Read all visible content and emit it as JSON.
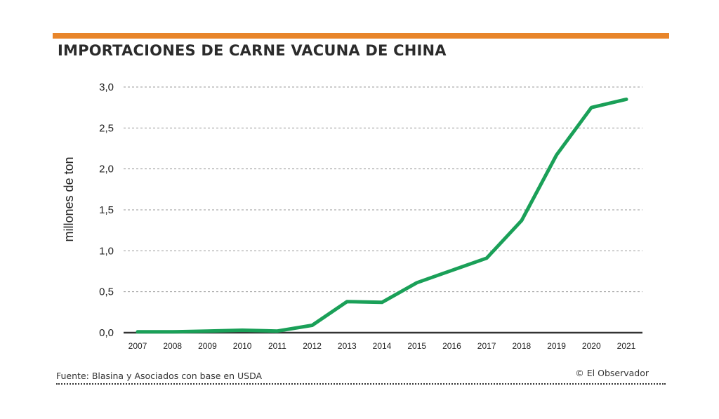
{
  "colors": {
    "accent_bar": "#E8852A",
    "line": "#1AA058",
    "grid": "#9a9a9a",
    "axis": "#333333",
    "text": "#222222"
  },
  "header": {
    "title": "IMPORTACIONES DE CARNE VACUNA DE CHINA"
  },
  "footer": {
    "source": "Fuente: Blasina y Asociados con base en USDA",
    "credit": "© El Observador"
  },
  "chart_data": {
    "type": "line",
    "title": "IMPORTACIONES DE CARNE VACUNA DE CHINA",
    "xlabel": "",
    "ylabel": "millones de ton",
    "x": [
      "2007",
      "2008",
      "2009",
      "2010",
      "2011",
      "2012",
      "2013",
      "2014",
      "2015",
      "2016",
      "2017",
      "2018",
      "2019",
      "2020",
      "2021"
    ],
    "series": [
      {
        "values": [
          0.01,
          0.01,
          0.02,
          0.03,
          0.02,
          0.09,
          0.38,
          0.37,
          0.61,
          0.76,
          0.91,
          1.37,
          2.17,
          2.75,
          2.85
        ]
      }
    ],
    "ylim": [
      0,
      3.0
    ],
    "yticks": [
      0.0,
      0.5,
      1.0,
      1.5,
      2.0,
      2.5,
      3.0
    ],
    "ytick_labels": [
      "0,0",
      "0,5",
      "1,0",
      "1,5",
      "2,0",
      "2,5",
      "3,0"
    ],
    "grid": true,
    "legend": "none"
  }
}
